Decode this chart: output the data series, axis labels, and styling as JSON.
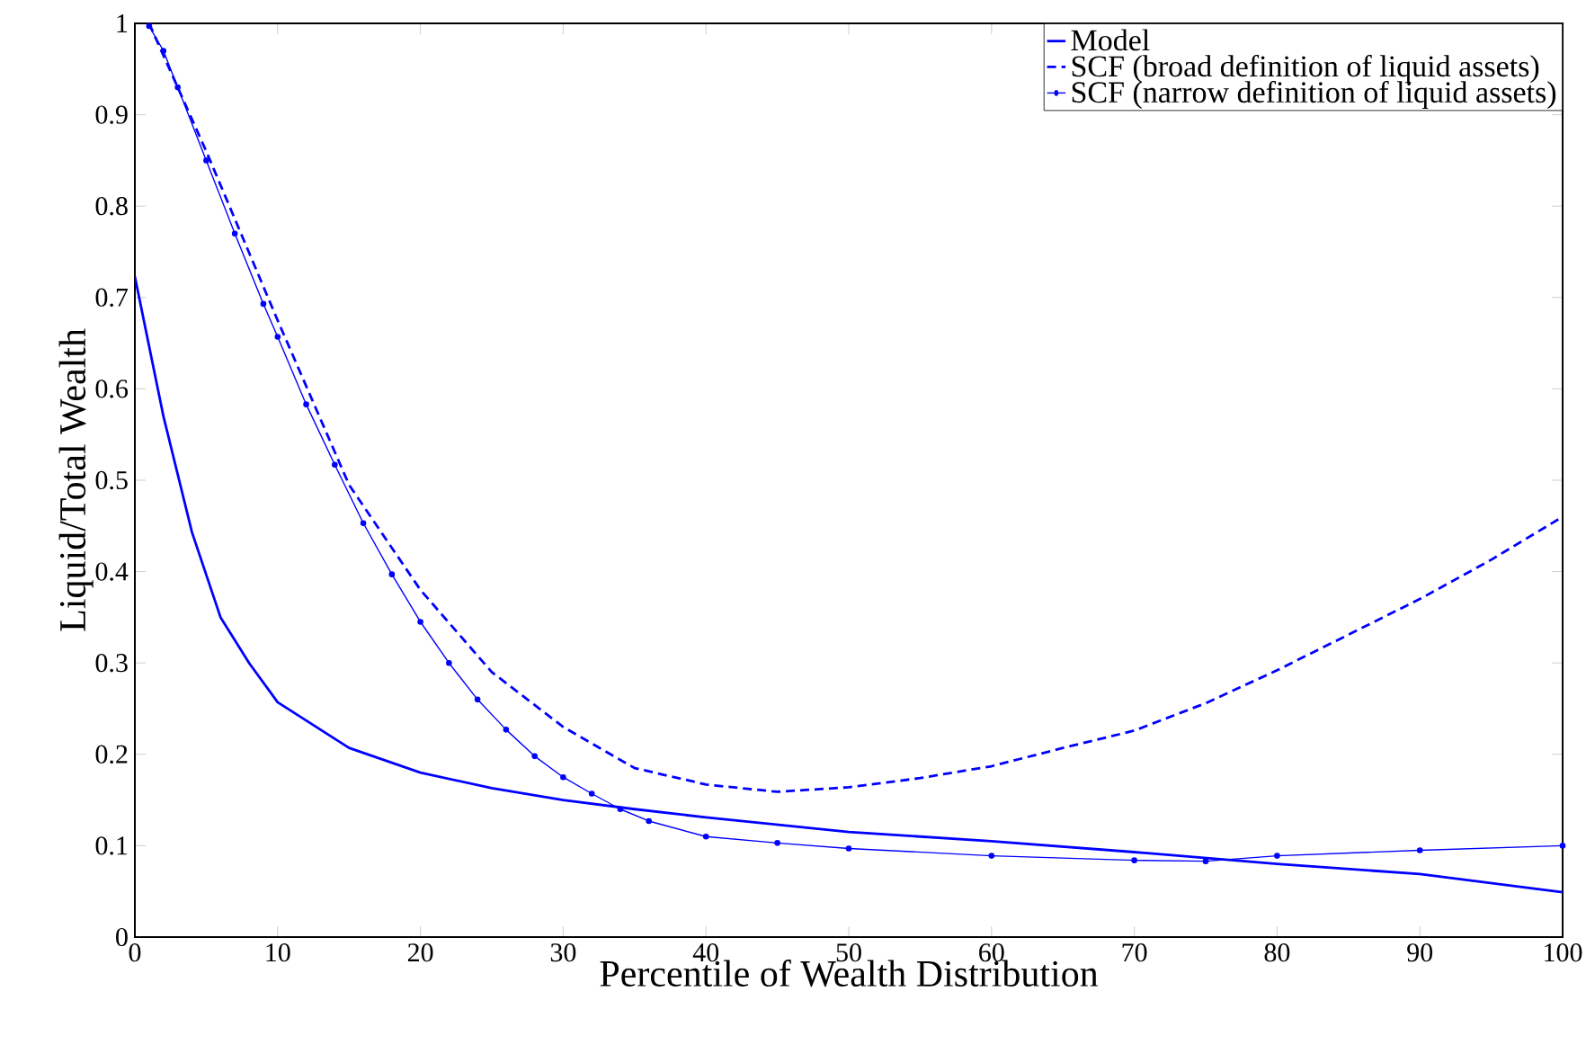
{
  "chart_data": {
    "type": "line",
    "xlabel": "Percentile of Wealth Distribution",
    "ylabel": "Liquid/Total Wealth",
    "xlim": [
      0,
      100
    ],
    "ylim": [
      0,
      1
    ],
    "xticks": [
      0,
      10,
      20,
      30,
      40,
      50,
      60,
      70,
      80,
      90,
      100
    ],
    "yticks": [
      0,
      0.1,
      0.2,
      0.3,
      0.4,
      0.5,
      0.6,
      0.7,
      0.8,
      0.9,
      1
    ],
    "grid": false,
    "legend": "top right",
    "series": [
      {
        "name": "Model",
        "color": "#0000ff",
        "line_style": "solid",
        "marker": "none",
        "x": [
          0,
          2,
          4,
          6,
          8,
          10,
          15,
          20,
          25,
          30,
          35,
          40,
          50,
          60,
          70,
          80,
          90,
          100
        ],
        "values": [
          0.723,
          0.57,
          0.443,
          0.35,
          0.3,
          0.257,
          0.207,
          0.18,
          0.163,
          0.15,
          0.14,
          0.131,
          0.115,
          0.105,
          0.093,
          0.08,
          0.069,
          0.049
        ]
      },
      {
        "name": "SCF (broad definition of liquid assets)",
        "color": "#0000ff",
        "line_style": "dashed",
        "marker": "none",
        "x": [
          1,
          5,
          10,
          15,
          20,
          25,
          30,
          35,
          40,
          45,
          50,
          55,
          60,
          65,
          70,
          75,
          80,
          85,
          90,
          95,
          100
        ],
        "values": [
          1.0,
          0.86,
          0.675,
          0.495,
          0.38,
          0.29,
          0.23,
          0.185,
          0.167,
          0.159,
          0.164,
          0.174,
          0.187,
          0.207,
          0.226,
          0.256,
          0.292,
          0.331,
          0.37,
          0.413,
          0.46
        ]
      },
      {
        "name": "SCF (narrow definition of liquid assets)",
        "color": "#0000ff",
        "line_style": "solid",
        "marker": "circle",
        "x": [
          1,
          2,
          3,
          5,
          7,
          9,
          10,
          12,
          14,
          16,
          18,
          20,
          22,
          24,
          26,
          28,
          30,
          32,
          34,
          36,
          40,
          45,
          50,
          60,
          70,
          75,
          80,
          90,
          100
        ],
        "values": [
          0.997,
          0.97,
          0.93,
          0.85,
          0.77,
          0.693,
          0.657,
          0.583,
          0.517,
          0.453,
          0.397,
          0.345,
          0.3,
          0.26,
          0.227,
          0.198,
          0.175,
          0.157,
          0.14,
          0.127,
          0.11,
          0.103,
          0.097,
          0.089,
          0.084,
          0.083,
          0.089,
          0.095,
          0.1
        ]
      }
    ]
  }
}
